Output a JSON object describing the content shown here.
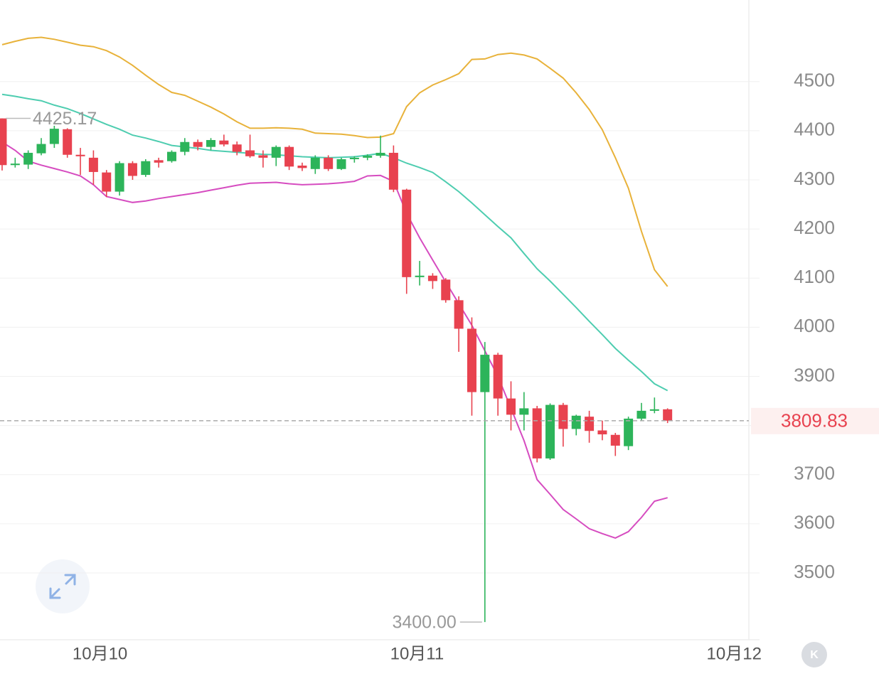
{
  "chart_data": {
    "type": "candlestick",
    "x": [
      0,
      1,
      2,
      3,
      4,
      5,
      6,
      7,
      8,
      9,
      10,
      11,
      12,
      13,
      14,
      15,
      16,
      17,
      18,
      19,
      20,
      21,
      22,
      23,
      24,
      25,
      26,
      27,
      28,
      29,
      30,
      31,
      32,
      33,
      34,
      35,
      36,
      37,
      38,
      39,
      40,
      41,
      42,
      43,
      44,
      45,
      46,
      47,
      48,
      49,
      50,
      51
    ],
    "open": [
      4425,
      4330,
      4331,
      4354,
      4373,
      4403,
      4351,
      4345,
      4315,
      4276,
      4334,
      4310,
      4340,
      4338,
      4357,
      4377,
      4367,
      4380,
      4372,
      4360,
      4350,
      4345,
      4367,
      4329,
      4322,
      4345,
      4322,
      4342,
      4345,
      4349,
      4355,
      4280,
      4102,
      4105,
      4097,
      4055,
      3997,
      3868,
      3944,
      3855,
      3822,
      3835,
      3733,
      3842,
      3793,
      3818,
      3790,
      3781,
      3758,
      3814,
      3830,
      3833
    ],
    "high": [
      4425.17,
      4345,
      4360,
      4385,
      4410,
      4405,
      4365,
      4360,
      4320,
      4338,
      4338,
      4342,
      4345,
      4360,
      4385,
      4382,
      4385,
      4392,
      4378,
      4392,
      4360,
      4370,
      4370,
      4335,
      4350,
      4350,
      4345,
      4348,
      4352,
      4390,
      4370,
      4282,
      4135,
      4110,
      4100,
      4063,
      4020,
      3970,
      3948,
      3890,
      3868,
      3840,
      3845,
      3846,
      3822,
      3830,
      3810,
      3785,
      3818,
      3846,
      3857,
      3835
    ],
    "low": [
      4319,
      4325,
      4322,
      4350,
      4365,
      4345,
      4310,
      4290,
      4265,
      4268,
      4300,
      4306,
      4325,
      4335,
      4350,
      4360,
      4360,
      4368,
      4350,
      4345,
      4325,
      4328,
      4320,
      4318,
      4312,
      4318,
      4320,
      4335,
      4340,
      4345,
      4275,
      4068,
      4085,
      4078,
      4050,
      3950,
      3820,
      3400,
      3820,
      3790,
      3790,
      3725,
      3730,
      3757,
      3780,
      3765,
      3770,
      3738,
      3750,
      3810,
      3825,
      3805
    ],
    "close": [
      4330,
      4333,
      4355,
      4373,
      4404,
      4351,
      4348,
      4316,
      4276,
      4334,
      4308,
      4338,
      4335,
      4357,
      4377,
      4367,
      4381,
      4372,
      4357,
      4348,
      4345,
      4367,
      4327,
      4324,
      4345,
      4322,
      4342,
      4345,
      4349,
      4355,
      4280,
      4102,
      4105,
      4094,
      4055,
      3997,
      3868,
      3944,
      3855,
      3822,
      3835,
      3733,
      3842,
      3793,
      3820,
      3789,
      3782,
      3759,
      3814,
      3830,
      3833,
      3809.83
    ],
    "up_color": "#2db45a",
    "down_color": "#e8424f",
    "lines": [
      {
        "color": "#e8b23a",
        "values": [
          4575,
          4582,
          4588,
          4590,
          4586,
          4580,
          4574,
          4571,
          4563,
          4550,
          4533,
          4513,
          4494,
          4478,
          4472,
          4460,
          4448,
          4434,
          4418,
          4405,
          4405,
          4406,
          4405,
          4403,
          4395,
          4394,
          4393,
          4390,
          4386,
          4387,
          4394,
          4449,
          4477,
          4493,
          4504,
          4516,
          4545,
          4546,
          4555,
          4558,
          4554,
          4546,
          4527,
          4507,
          4477,
          4443,
          4402,
          4345,
          4283,
          4195,
          4117,
          4083
        ]
      },
      {
        "color": "#4ecdb0",
        "values": [
          4474,
          4470,
          4465,
          4461,
          4452,
          4445,
          4435,
          4424,
          4413,
          4403,
          4391,
          4385,
          4378,
          4370,
          4367,
          4364,
          4360,
          4358,
          4356,
          4354,
          4352,
          4351,
          4349,
          4347,
          4346,
          4345,
          4346,
          4347,
          4350,
          4354,
          4345,
          4334,
          4325,
          4315,
          4296,
          4276,
          4253,
          4229,
          4205,
          4182,
          4150,
          4119,
          4094,
          4067,
          4040,
          4012,
          3985,
          3957,
          3933,
          3910,
          3885,
          3871
        ]
      },
      {
        "color": "#d64cc0",
        "values": [
          4377,
          4360,
          4338,
          4330,
          4323,
          4316,
          4308,
          4290,
          4266,
          4260,
          4254,
          4257,
          4262,
          4266,
          4270,
          4274,
          4279,
          4284,
          4289,
          4293,
          4294,
          4295,
          4292,
          4290,
          4291,
          4292,
          4294,
          4297,
          4308,
          4309,
          4297,
          4232,
          4182,
          4137,
          4092,
          4048,
          4004,
          3952,
          3900,
          3835,
          3769,
          3690,
          3660,
          3629,
          3610,
          3590,
          3580,
          3571,
          3584,
          3613,
          3646,
          3653
        ]
      }
    ],
    "max_label": "4425.17",
    "min_label": "3400.00",
    "last_label": "3809.83",
    "xlim": [
      -0.162,
      56.73
    ],
    "xticks": [
      {
        "value": 7.5,
        "label": "10月10"
      },
      {
        "value": 31.8,
        "label": "10月11"
      },
      {
        "value": 56.1,
        "label": "10月12"
      }
    ],
    "ylim": [
      3364,
      4666
    ],
    "yticks": [
      3500,
      3600,
      3700,
      3800,
      3900,
      4000,
      4100,
      4200,
      4300,
      4400,
      4500
    ],
    "grid": true,
    "button_label": "K"
  }
}
